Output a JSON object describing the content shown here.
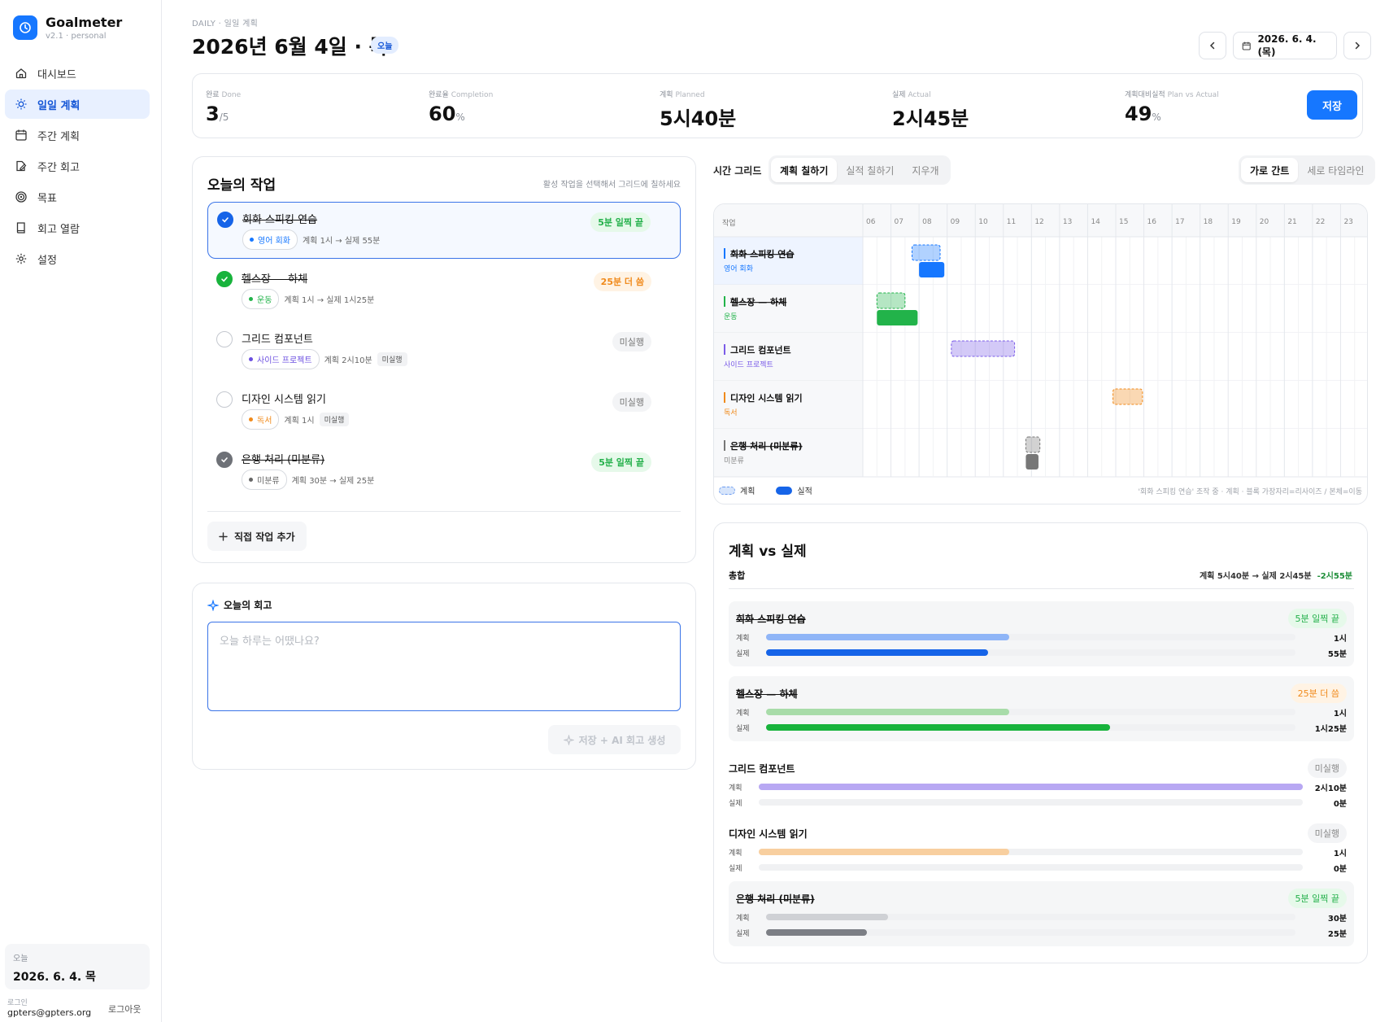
{
  "app": {
    "name": "Goalmeter",
    "version": "v2.1 · personal"
  },
  "sidebar": {
    "items": [
      {
        "label": "대시보드",
        "icon": "home-icon"
      },
      {
        "label": "일일 계획",
        "icon": "sun-icon",
        "active": true
      },
      {
        "label": "주간 계획",
        "icon": "calendar-icon"
      },
      {
        "label": "주간 회고",
        "icon": "edit-icon"
      },
      {
        "label": "목표",
        "icon": "target-icon"
      },
      {
        "label": "회고 열람",
        "icon": "book-icon"
      },
      {
        "label": "설정",
        "icon": "gear-icon"
      }
    ],
    "today_label": "오늘",
    "today_value": "2026. 6. 4. 목",
    "login_label": "로그인",
    "login_email": "gpters@gpters.org",
    "logout": "로그아웃"
  },
  "header": {
    "breadcrumb": "DAILY · 일일 계획",
    "title": "2026년 6월 4일 · 목",
    "badge": "오늘",
    "date": "2026. 6. 4. (목)"
  },
  "stats": [
    {
      "label": "완료",
      "en": "Done",
      "value": "3",
      "unit": "/5"
    },
    {
      "label": "완료율",
      "en": "Completion",
      "value": "60",
      "unit": "%"
    },
    {
      "label": "계획",
      "en": "Planned",
      "value": "5시40분",
      "unit": ""
    },
    {
      "label": "실제",
      "en": "Actual",
      "value": "2시45분",
      "unit": ""
    },
    {
      "label": "계획대비실적",
      "en": "Plan vs Actual",
      "value": "49",
      "unit": "%"
    }
  ],
  "save_label": "저장",
  "tasks_panel": {
    "title": "오늘의 작업",
    "hint": "활성 작업을 선택해서 그리드에 칠하세요",
    "add_label": "직접 작업 추가",
    "tasks": [
      {
        "name": "회화 스피킹 연습",
        "tag": "영어 회화",
        "tag_color": "#1677ff",
        "detail": "계획 1시 → 실제 55분",
        "chip": "",
        "status": "5분 일찍 끝",
        "state": "selected",
        "done": true
      },
      {
        "name": "헬스장 — 하체",
        "tag": "운동",
        "tag_color": "#22b34a",
        "detail": "계획 1시 → 실제 1시25분",
        "chip": "",
        "status": "25분 더 씀",
        "state": "done-green",
        "done": true
      },
      {
        "name": "그리드 컴포넌트",
        "tag": "사이드 프로젝트",
        "tag_color": "#6b4fe0",
        "detail": "계획 2시10분",
        "chip": "미실행",
        "status": "미실행",
        "state": "open",
        "done": false
      },
      {
        "name": "디자인 시스템 읽기",
        "tag": "독서",
        "tag_color": "#f08a1b",
        "detail": "계획 1시",
        "chip": "미실행",
        "status": "미실행",
        "state": "open",
        "done": false
      },
      {
        "name": "은행 처리 (미분류)",
        "tag": "미분류",
        "tag_color": "#666666",
        "detail": "계획 30분 → 실제 25분",
        "chip": "",
        "status": "5분 일찍 끝",
        "state": "done-grey",
        "done": true
      }
    ]
  },
  "reflection": {
    "title": "오늘의 회고",
    "placeholder": "오늘 하루는 어땠나요?",
    "ai_button": "저장 + AI 회고 생성"
  },
  "grid_toolbar": {
    "label": "시간 그리드",
    "modes": [
      "계획 칠하기",
      "실적 칠하기",
      "지우개"
    ],
    "active_mode": 0,
    "views": [
      "가로 간트",
      "세로 타임라인"
    ],
    "active_view": 0
  },
  "gantt": {
    "col_header": "작업",
    "hours": [
      "06",
      "07",
      "08",
      "09",
      "10",
      "11",
      "12",
      "13",
      "14",
      "15",
      "16",
      "17",
      "18",
      "19",
      "20",
      "21",
      "22",
      "23"
    ],
    "rows": [
      {
        "name": "회화 스피킹 연습",
        "tag": "영어 회화",
        "color": "#1677ff",
        "plan": [
          7.75,
          8.75
        ],
        "actual": [
          8.0,
          8.9
        ],
        "done": true,
        "selected": true
      },
      {
        "name": "헬스장 — 하체",
        "tag": "운동",
        "color": "#22b34a",
        "plan": [
          6.5,
          7.5
        ],
        "actual": [
          6.5,
          7.95
        ],
        "done": true
      },
      {
        "name": "그리드 컴포넌트",
        "tag": "사이드 프로젝트",
        "color": "#7b5ce8",
        "plan": [
          9.15,
          11.4
        ],
        "actual": null,
        "done": false
      },
      {
        "name": "디자인 시스템 읽기",
        "tag": "독서",
        "color": "#f08a1b",
        "plan": [
          14.9,
          15.95
        ],
        "actual": null,
        "done": false
      },
      {
        "name": "은행 처리 (미분류)",
        "tag": "미분류",
        "color": "#777777",
        "plan": [
          11.8,
          12.3
        ],
        "actual": [
          11.8,
          12.25
        ],
        "done": true
      }
    ],
    "legend_plan": "계획",
    "legend_actual": "실적",
    "hint": "'회화 스피킹 연습' 조작 중 · 계획 · 블록 가장자리=리사이즈 / 본체=이동"
  },
  "pva": {
    "title": "계획 vs 실제",
    "summary_label": "총합",
    "summary_value": "계획 5시40분 → 실제 2시45분",
    "summary_diff": "-2시55분",
    "plan_label": "계획",
    "actual_label": "실제",
    "items": [
      {
        "name": "회화 스피킹 연습",
        "status": "5분 일찍 끝",
        "status_type": "green",
        "plan": "1시",
        "actual": "55분",
        "plan_frac": 0.46,
        "actual_frac": 0.42,
        "done": true,
        "hl": true,
        "plan_color": "#8fb5f7",
        "actual_color": "#1664e8"
      },
      {
        "name": "헬스장 — 하체",
        "status": "25분 더 씀",
        "status_type": "orange",
        "plan": "1시",
        "actual": "1시25분",
        "plan_frac": 0.46,
        "actual_frac": 0.65,
        "done": true,
        "hl": true,
        "plan_color": "#a8dca9",
        "actual_color": "#18b33c"
      },
      {
        "name": "그리드 컴포넌트",
        "status": "미실행",
        "status_type": "grey",
        "plan": "2시10분",
        "actual": "0분",
        "plan_frac": 1.0,
        "actual_frac": 0,
        "done": false,
        "hl": false,
        "plan_color": "#b8a8f3",
        "actual_color": "#7b5ce8"
      },
      {
        "name": "디자인 시스템 읽기",
        "status": "미실행",
        "status_type": "grey",
        "plan": "1시",
        "actual": "0분",
        "plan_frac": 0.46,
        "actual_frac": 0,
        "done": false,
        "hl": false,
        "plan_color": "#f8cf9f",
        "actual_color": "#f08a1b"
      },
      {
        "name": "은행 처리 (미분류)",
        "status": "5분 일찍 끝",
        "status_type": "green",
        "plan": "30분",
        "actual": "25분",
        "plan_frac": 0.23,
        "actual_frac": 0.19,
        "done": true,
        "hl": true,
        "plan_color": "#cfd1d5",
        "actual_color": "#7c7f85"
      }
    ]
  }
}
